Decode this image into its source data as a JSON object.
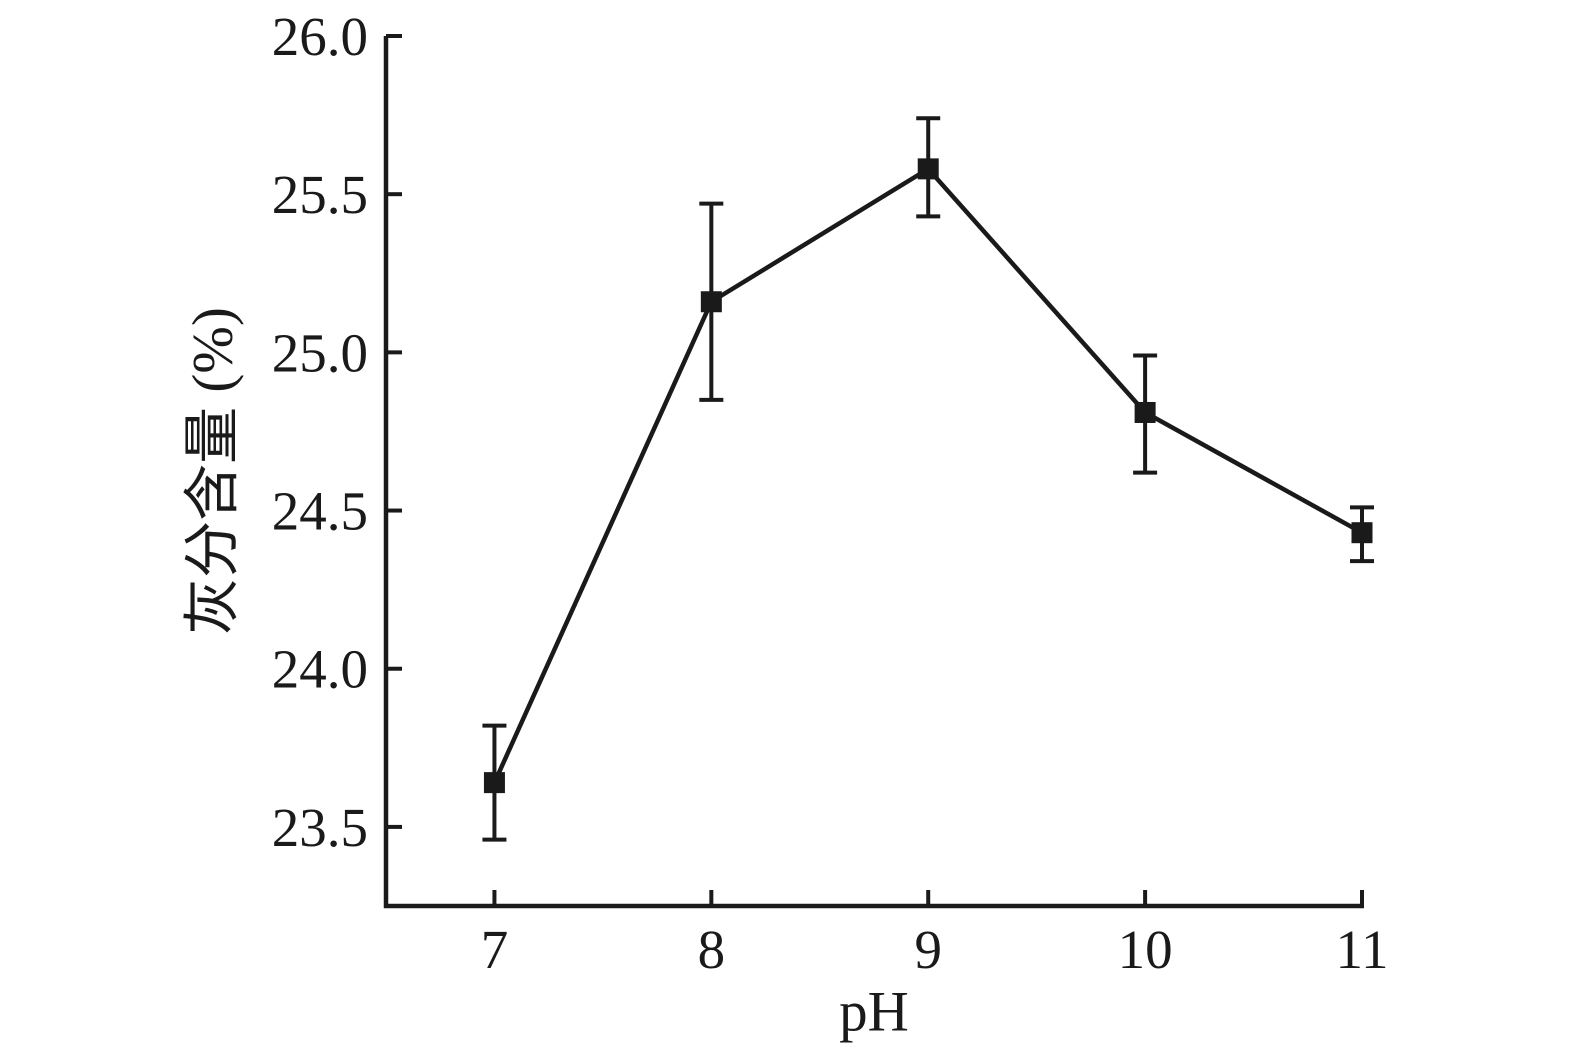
{
  "figure": {
    "background": "#ffffff",
    "ink_color": "#1a1a1a"
  },
  "chart_data": {
    "type": "line",
    "xlabel": "pH",
    "ylabel": "灰分含量 (%)",
    "xlim": [
      6.5,
      11.0
    ],
    "ylim": [
      23.25,
      26.0
    ],
    "grid": false,
    "legend": "none",
    "xticks": {
      "values": [
        7,
        8,
        9,
        10,
        11
      ],
      "labels": [
        "7",
        "8",
        "9",
        "10",
        "11"
      ]
    },
    "yticks": {
      "values": [
        23.5,
        24.0,
        24.5,
        25.0,
        25.5,
        26.0
      ],
      "labels": [
        "23.5",
        "24.0",
        "24.5",
        "25.0",
        "25.5",
        "26.0"
      ]
    },
    "series": [
      {
        "name": "ash-content",
        "marker": "filled-square",
        "color": "#1a1a1a",
        "x": [
          7,
          8,
          9,
          10,
          11
        ],
        "y": [
          23.64,
          25.16,
          25.58,
          24.81,
          24.43
        ],
        "error_up": [
          0.18,
          0.31,
          0.16,
          0.18,
          0.08
        ],
        "error_down": [
          0.18,
          0.31,
          0.15,
          0.19,
          0.09
        ]
      }
    ]
  }
}
